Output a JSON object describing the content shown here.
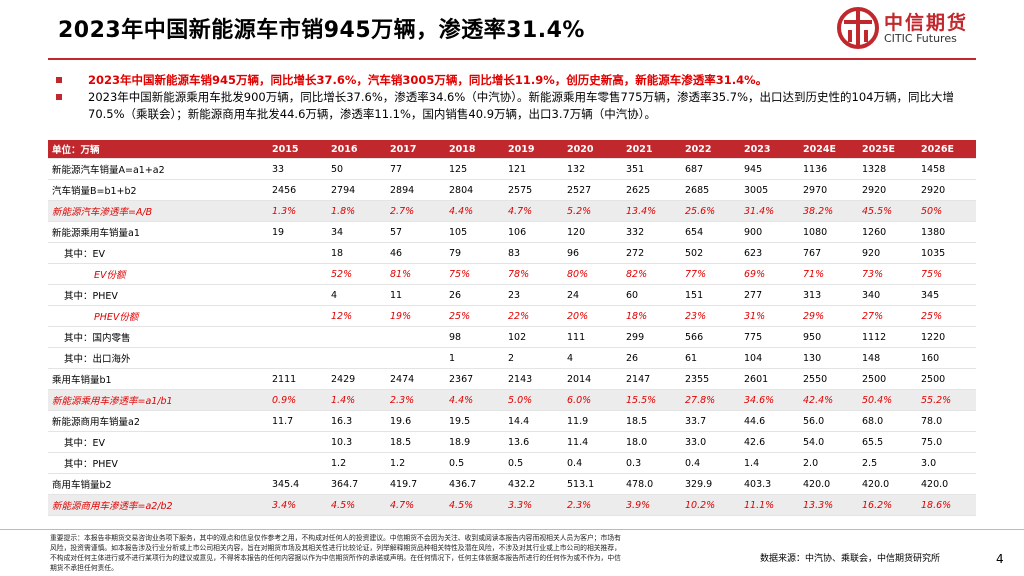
{
  "header": {
    "title": "2023年中国新能源车市销945万辆，渗透率31.4%",
    "logo_cn": "中信期货",
    "logo_en": "CITIC Futures"
  },
  "bullets": [
    "2023年中国新能源车销945万辆，同比增长37.6%，汽车销3005万辆，同比增长11.9%，创历史新高，新能源车渗透率31.4%。",
    "2023年中国新能源乘用车批发900万辆，同比增长37.6%，渗透率34.6%（中汽协）。新能源乘用车零售775万辆，渗透率35.7%，出口达到历史性的104万辆，同比大增70.5%（乘联会）；新能源商用车批发44.6万辆，渗透率11.1%，国内销售40.9万辆，出口3.7万辆（中汽协）。"
  ],
  "table": {
    "columns": [
      "单位：万辆",
      "2015",
      "2016",
      "2017",
      "2018",
      "2019",
      "2020",
      "2021",
      "2022",
      "2023",
      "2024E",
      "2025E",
      "2026E"
    ],
    "rows": [
      [
        "新能源汽车销量A=a1+a2",
        "33",
        "50",
        "77",
        "125",
        "121",
        "132",
        "351",
        "687",
        "945",
        "1136",
        "1328",
        "1458"
      ],
      [
        "汽车销量B=b1+b2",
        "2456",
        "2794",
        "2894",
        "2804",
        "2575",
        "2527",
        "2625",
        "2685",
        "3005",
        "2970",
        "2920",
        "2920"
      ],
      [
        "新能源汽车渗透率=A/B",
        "1.3%",
        "1.8%",
        "2.7%",
        "4.4%",
        "4.7%",
        "5.2%",
        "13.4%",
        "25.6%",
        "31.4%",
        "38.2%",
        "45.5%",
        "50%"
      ],
      [
        "新能源乘用车销量a1",
        "19",
        "34",
        "57",
        "105",
        "106",
        "120",
        "332",
        "654",
        "900",
        "1080",
        "1260",
        "1380"
      ],
      [
        "其中：EV",
        null,
        "18",
        "46",
        "79",
        "83",
        "96",
        "272",
        "502",
        "623",
        "767",
        "920",
        "1035"
      ],
      [
        "EV份额",
        null,
        "52%",
        "81%",
        "75%",
        "78%",
        "80%",
        "82%",
        "77%",
        "69%",
        "71%",
        "73%",
        "75%"
      ],
      [
        "其中：PHEV",
        null,
        "4",
        "11",
        "26",
        "23",
        "24",
        "60",
        "151",
        "277",
        "313",
        "340",
        "345"
      ],
      [
        "PHEV份额",
        null,
        "12%",
        "19%",
        "25%",
        "22%",
        "20%",
        "18%",
        "23%",
        "31%",
        "29%",
        "27%",
        "25%"
      ],
      [
        "其中：国内零售",
        null,
        null,
        null,
        "98",
        "102",
        "111",
        "299",
        "566",
        "775",
        "950",
        "1112",
        "1220"
      ],
      [
        "其中：出口海外",
        null,
        null,
        null,
        "1",
        "2",
        "4",
        "26",
        "61",
        "104",
        "130",
        "148",
        "160"
      ],
      [
        "乘用车销量b1",
        "2111",
        "2429",
        "2474",
        "2367",
        "2143",
        "2014",
        "2147",
        "2355",
        "2601",
        "2550",
        "2500",
        "2500"
      ],
      [
        "新能源乘用车渗透率=a1/b1",
        "0.9%",
        "1.4%",
        "2.3%",
        "4.4%",
        "5.0%",
        "6.0%",
        "15.5%",
        "27.8%",
        "34.6%",
        "42.4%",
        "50.4%",
        "55.2%"
      ],
      [
        "新能源商用车销量a2",
        "11.7",
        "16.3",
        "19.6",
        "19.5",
        "14.4",
        "11.9",
        "18.5",
        "33.7",
        "44.6",
        "56.0",
        "68.0",
        "78.0"
      ],
      [
        "其中：EV",
        null,
        "10.3",
        "18.5",
        "18.9",
        "13.6",
        "11.4",
        "18.0",
        "33.0",
        "42.6",
        "54.0",
        "65.5",
        "75.0"
      ],
      [
        "其中：PHEV",
        null,
        "1.2",
        "1.2",
        "0.5",
        "0.5",
        "0.4",
        "0.3",
        "0.4",
        "1.4",
        "2.0",
        "2.5",
        "3.0"
      ],
      [
        "商用车销量b2",
        "345.4",
        "364.7",
        "419.7",
        "436.7",
        "432.2",
        "513.1",
        "478.0",
        "329.9",
        "403.3",
        "420.0",
        "420.0",
        "420.0"
      ],
      [
        "新能源商用车渗透率=a2/b2",
        "3.4%",
        "4.5%",
        "4.7%",
        "4.5%",
        "3.3%",
        "2.3%",
        "3.9%",
        "10.2%",
        "11.1%",
        "13.3%",
        "16.2%",
        "18.6%"
      ]
    ]
  },
  "footer": {
    "disclaimer": "重要提示：本报告非期货交易咨询业务项下服务，其中的观点和信息仅作参考之用，不构成对任何人的投资建议。中信期货不会因为关注、收到或阅读本报告内容而视相关人员为客户；市场有风险，投资需谨慎。如本报告涉及行业分析或上市公司相关内容，旨在对期货市场及其相关性进行比较论证，列举解释期货品种相关特性及潜在风险，不涉及对其行业或上市公司的相关推荐，不构成对任何主体进行或不进行某项行为的建议或意见，不得将本报告的任何内容据以作为中信期货所作的承诺或声明。在任何情况下，任何主体依据本报告所进行的任何作为或不作为，中信期货不承担任何责任。",
    "source": "数据来源：中汽协、乘联会，中信期货研究所",
    "page": "4"
  }
}
